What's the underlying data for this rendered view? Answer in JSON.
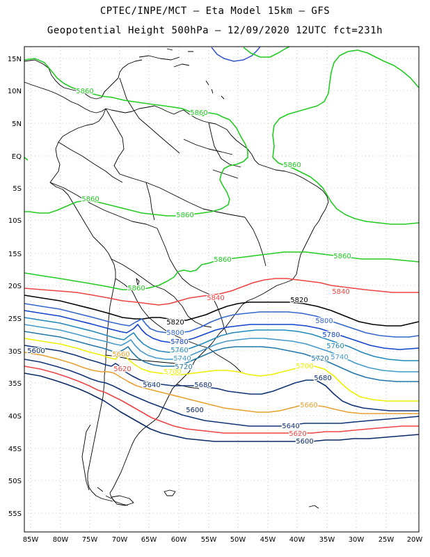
{
  "title_line1": "CPTEC/INPE/MCT –  Eta Model 15km – GFS",
  "title_line2": "Geopotential Height 500hPa – 12/09/2020 12UTC fct=231h",
  "lat_labels": [
    "15N",
    "10N",
    "5N",
    "EQ",
    "5S",
    "10S",
    "15S",
    "20S",
    "25S",
    "30S",
    "35S",
    "40S",
    "45S",
    "50S",
    "55S"
  ],
  "lon_labels": [
    "85W",
    "80W",
    "75W",
    "70W",
    "65W",
    "60W",
    "55W",
    "50W",
    "45W",
    "40W",
    "35W",
    "30W",
    "25W",
    "20W"
  ],
  "colors": {
    "5860": "#22cc22",
    "5840": "#ee4444",
    "5820": "#000000",
    "5800": "#3366cc",
    "5780": "#1144cc",
    "5760": "#2288bb",
    "5740": "#4499cc",
    "5720": "#2277aa",
    "5700": "#eeee00",
    "5680": "#113377",
    "5660": "#e8a030",
    "5640": "#113377",
    "5620": "#ee4444",
    "5600": "#0a2a66",
    "coast": "#000000",
    "grid": "#999999",
    "lake": "#3355cc"
  },
  "contour_labels": [
    {
      "text": "5860",
      "level": "5860"
    },
    {
      "text": "5860",
      "level": "5860"
    },
    {
      "text": "5860",
      "level": "5860"
    },
    {
      "text": "5860",
      "level": "5860"
    },
    {
      "text": "5860",
      "level": "5860"
    },
    {
      "text": "5860",
      "level": "5860"
    },
    {
      "text": "5860",
      "level": "5860"
    },
    {
      "text": "5860",
      "level": "5860"
    },
    {
      "text": "5840",
      "level": "5840"
    },
    {
      "text": "5840",
      "level": "5840"
    },
    {
      "text": "5820",
      "level": "5820"
    },
    {
      "text": "5820",
      "level": "5820"
    },
    {
      "text": "5800",
      "level": "5800"
    },
    {
      "text": "5800",
      "level": "5800"
    },
    {
      "text": "5780",
      "level": "5780"
    },
    {
      "text": "5780",
      "level": "5780"
    },
    {
      "text": "5760",
      "level": "5760"
    },
    {
      "text": "5760",
      "level": "5760"
    },
    {
      "text": "5740",
      "level": "5740"
    },
    {
      "text": "5740",
      "level": "5740"
    },
    {
      "text": "5720",
      "level": "5720"
    },
    {
      "text": "5720",
      "level": "5720"
    },
    {
      "text": "5700",
      "level": "5700"
    },
    {
      "text": "5700",
      "level": "5700"
    },
    {
      "text": "5680",
      "level": "5680"
    },
    {
      "text": "5680",
      "level": "5680"
    },
    {
      "text": "5660",
      "level": "5660"
    },
    {
      "text": "5660",
      "level": "5660"
    },
    {
      "text": "5640",
      "level": "5640"
    },
    {
      "text": "5640",
      "level": "5640"
    },
    {
      "text": "5620",
      "level": "5620"
    },
    {
      "text": "5620",
      "level": "5620"
    },
    {
      "text": "5600",
      "level": "5600"
    },
    {
      "text": "5600",
      "level": "5600"
    },
    {
      "text": "5600",
      "level": "5600"
    }
  ]
}
